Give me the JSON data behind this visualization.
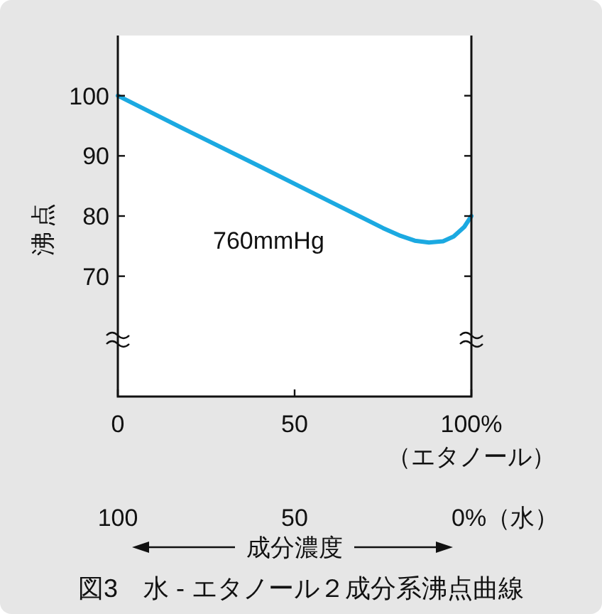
{
  "chart_data": {
    "type": "line",
    "title": "図3　水 - エタノール２成分系沸点曲線",
    "ylabel": "沸点",
    "xlabel": "（エタノール）",
    "x2label": "成分濃度",
    "annotations": [
      "760mmHg"
    ],
    "x": [
      0,
      20,
      40,
      60,
      75,
      80,
      84,
      88,
      92,
      95,
      98,
      100
    ],
    "series": [
      {
        "color": "#1ba9e1",
        "values": [
          100,
          94.1,
          88.3,
          82.4,
          78.0,
          76.7,
          75.9,
          75.6,
          75.8,
          76.6,
          78.2,
          80
        ]
      }
    ],
    "xlim": [
      0,
      100
    ],
    "xticks": [
      0,
      50,
      {
        "value": 100,
        "label": "100%"
      }
    ],
    "x2lim": [
      100,
      0
    ],
    "x2ticks": [
      100,
      50,
      {
        "value": 0,
        "label": "0%（水）"
      }
    ],
    "ylim": [
      50,
      110
    ],
    "yticks": [
      70,
      80,
      90,
      100
    ],
    "grid": false,
    "line_style": "solid"
  }
}
